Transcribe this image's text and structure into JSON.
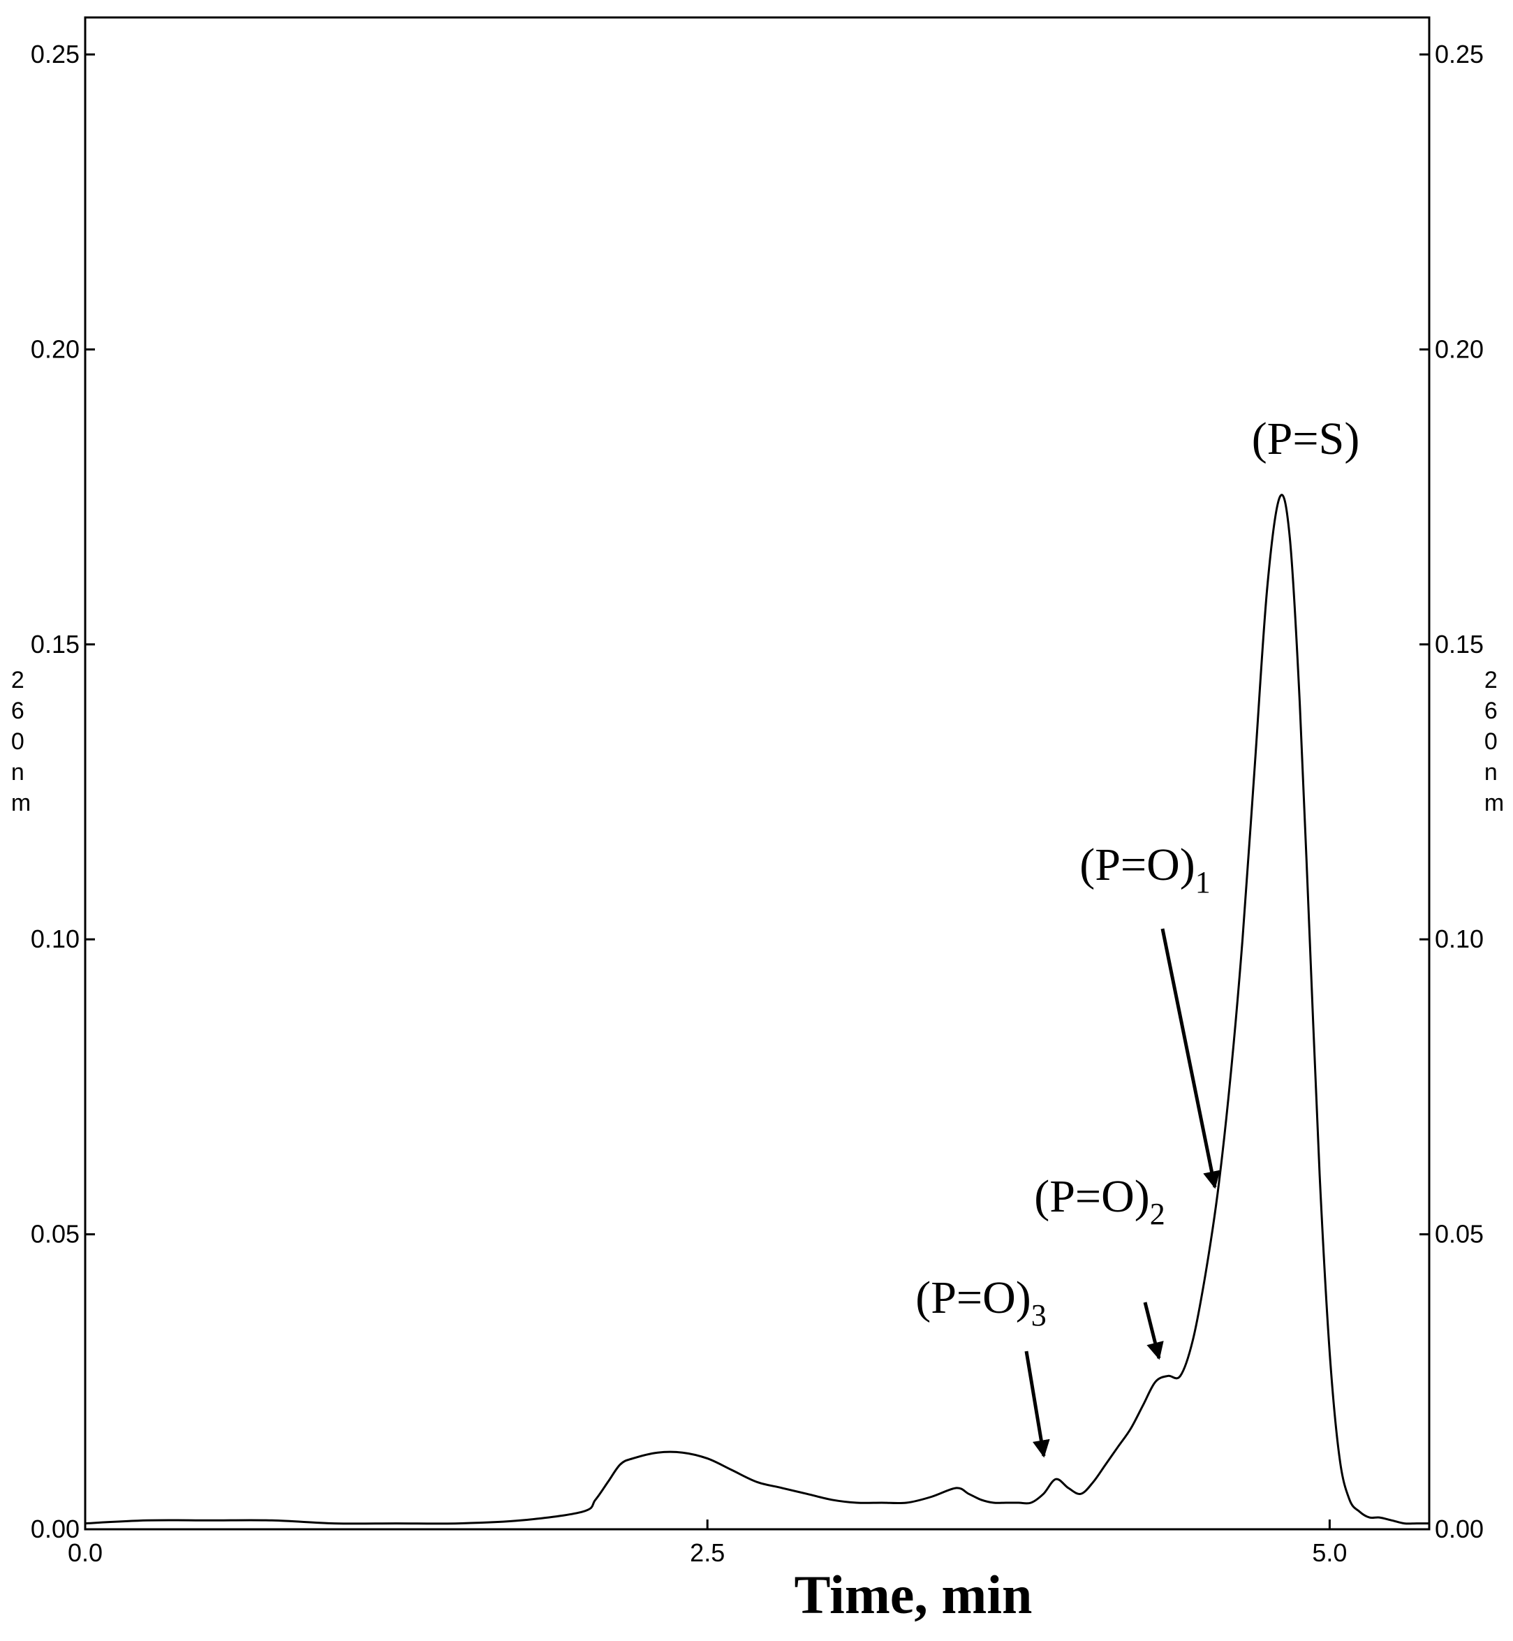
{
  "chart_data": {
    "type": "line",
    "xlabel": "Time, min",
    "ylabel_left": "260nm",
    "ylabel_right": "260nm",
    "xlim": [
      0.0,
      5.4
    ],
    "ylim": [
      0.0,
      0.26
    ],
    "x_ticks": [
      {
        "value": 0.0,
        "label": "0.0"
      },
      {
        "value": 2.5,
        "label": "2.5"
      },
      {
        "value": 5.0,
        "label": "5.0"
      }
    ],
    "y_ticks": [
      {
        "value": 0.0,
        "label": "0.00"
      },
      {
        "value": 0.05,
        "label": "0.05"
      },
      {
        "value": 0.1,
        "label": "0.10"
      },
      {
        "value": 0.15,
        "label": "0.15"
      },
      {
        "value": 0.2,
        "label": "0.20"
      },
      {
        "value": 0.25,
        "label": "0.25"
      }
    ],
    "grid": false,
    "series": [
      {
        "x": [
          0.0,
          0.25,
          0.5,
          0.75,
          1.0,
          1.25,
          1.5,
          1.75,
          2.0,
          2.05,
          2.1,
          2.15,
          2.2,
          2.3,
          2.4,
          2.5,
          2.6,
          2.7,
          2.8,
          2.9,
          3.0,
          3.1,
          3.2,
          3.3,
          3.4,
          3.5,
          3.55,
          3.6,
          3.65,
          3.7,
          3.75,
          3.8,
          3.85,
          3.9,
          3.95,
          4.0,
          4.05,
          4.1,
          4.15,
          4.2,
          4.25,
          4.3,
          4.35,
          4.4,
          4.45,
          4.5,
          4.55,
          4.6,
          4.65,
          4.7,
          4.75,
          4.8,
          4.84,
          4.88,
          4.92,
          4.96,
          5.0,
          5.04,
          5.08,
          5.12,
          5.16,
          5.2,
          5.25,
          5.3,
          5.35,
          5.4
        ],
        "y": [
          0.001,
          0.0015,
          0.0015,
          0.0015,
          0.001,
          0.001,
          0.001,
          0.0015,
          0.003,
          0.005,
          0.008,
          0.011,
          0.012,
          0.013,
          0.013,
          0.012,
          0.01,
          0.008,
          0.007,
          0.006,
          0.005,
          0.0045,
          0.0045,
          0.0045,
          0.0055,
          0.007,
          0.006,
          0.005,
          0.0045,
          0.0045,
          0.0045,
          0.0045,
          0.006,
          0.0085,
          0.007,
          0.006,
          0.008,
          0.011,
          0.014,
          0.017,
          0.021,
          0.025,
          0.026,
          0.026,
          0.032,
          0.043,
          0.057,
          0.076,
          0.1,
          0.13,
          0.16,
          0.175,
          0.168,
          0.14,
          0.1,
          0.06,
          0.03,
          0.012,
          0.005,
          0.003,
          0.002,
          0.002,
          0.0015,
          0.001,
          0.001,
          0.001
        ]
      }
    ],
    "annotations": [
      {
        "main": "(P=S)",
        "sub": "",
        "arrow": false,
        "x": 4.8,
        "y": 0.175
      },
      {
        "main": "(P=O)",
        "sub": "1",
        "arrow": true,
        "x": 4.55,
        "y": 0.057
      },
      {
        "main": "(P=O)",
        "sub": "2",
        "arrow": true,
        "x": 4.3,
        "y": 0.028
      },
      {
        "main": "(P=O)",
        "sub": "3",
        "arrow": true,
        "x": 3.93,
        "y": 0.011
      }
    ]
  }
}
